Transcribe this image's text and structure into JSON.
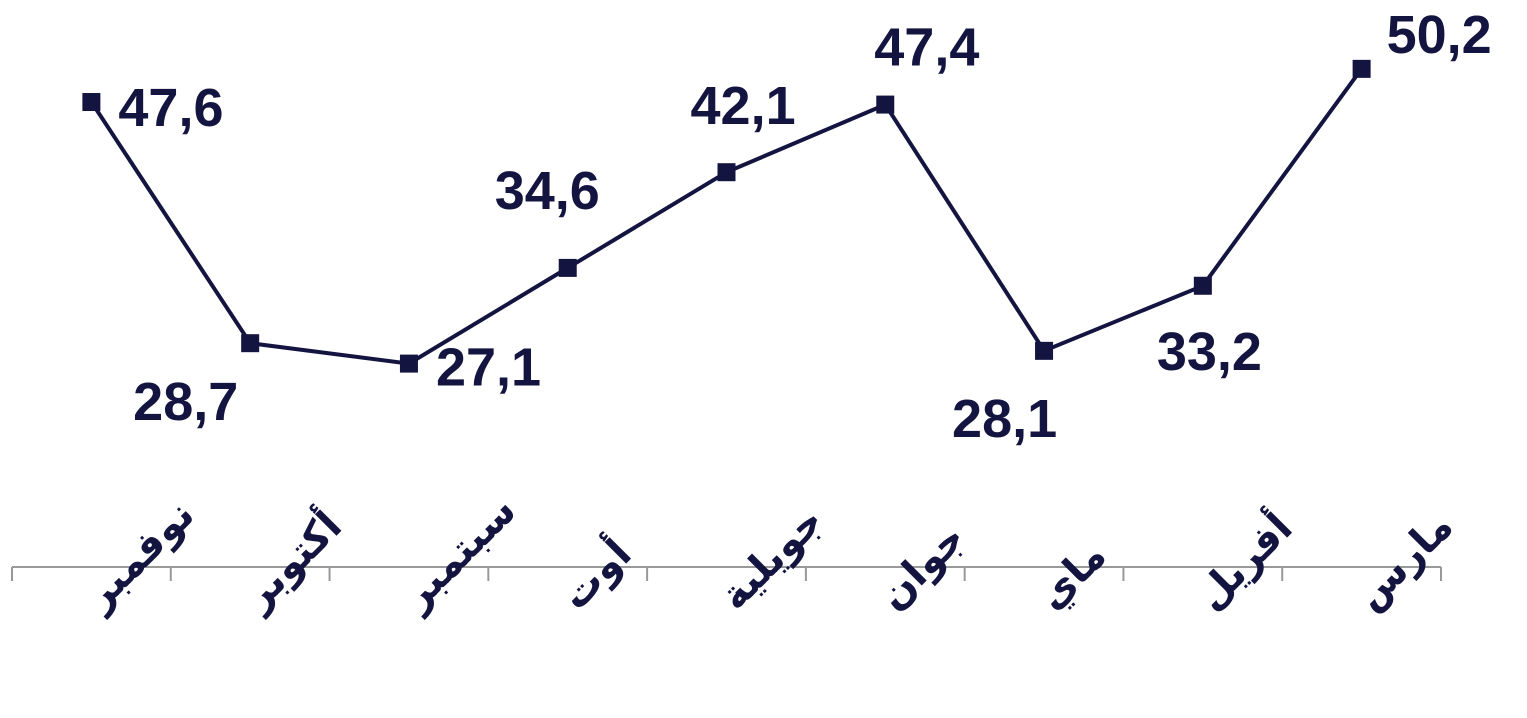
{
  "chart_data": {
    "type": "line",
    "categories": [
      "نوفمبر",
      "أكتوبر",
      "سبتمبر",
      "أوت",
      "جويلية",
      "جوان",
      "ماي",
      "أفريل",
      "مارس"
    ],
    "series": [
      {
        "values": [
          47.6,
          28.7,
          27.1,
          34.6,
          42.1,
          47.4,
          28.1,
          33.2,
          50.2
        ],
        "labels": [
          "47,6",
          "28,7",
          "27,1",
          "34,6",
          "42,1",
          "47,4",
          "28,1",
          "33,2",
          "50,2"
        ]
      }
    ],
    "line_color": "#141440",
    "axis_color": "#999999",
    "grid": false,
    "legend": "none"
  }
}
